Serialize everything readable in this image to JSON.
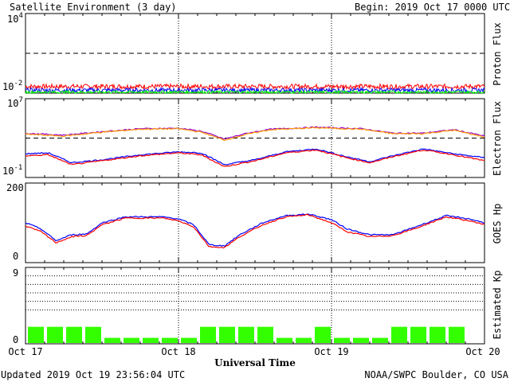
{
  "header": {
    "title": "Satellite Environment (3 day)",
    "begin": "Begin:  2019 Oct 17 0000 UTC"
  },
  "footer": {
    "updated": "Updated 2019 Oct 19 23:56:04 UTC",
    "credit": "NOAA/SWPC Boulder, CO USA"
  },
  "colors": {
    "red": "#ff0000",
    "blue": "#0000ff",
    "green": "#00ff00",
    "orange": "#ff9900",
    "kp_bar": "#33ff00"
  },
  "chart_data": [
    {
      "type": "line",
      "ylabel": "Proton Flux",
      "yscale": "log",
      "ytick_labels": [
        {
          "base": "10",
          "exp": "4"
        },
        {
          "base": "10",
          "exp": "-2"
        }
      ],
      "ylim": [
        -2,
        4
      ],
      "threshold_line": 1,
      "x_range_days": [
        0,
        3
      ],
      "series": [
        {
          "color": "red",
          "log_value": -1.5,
          "noise": 0.18
        },
        {
          "color": "blue",
          "log_value": -1.78,
          "noise": 0.16
        },
        {
          "color": "green",
          "log_value": -1.92,
          "noise": 0.1
        }
      ]
    },
    {
      "type": "line",
      "ylabel": "Electron Flux",
      "yscale": "log",
      "ytick_labels": [
        {
          "base": "10",
          "exp": "7"
        },
        {
          "base": "10",
          "exp": "-1"
        }
      ],
      "ylim": [
        -1,
        7
      ],
      "threshold_line": 3,
      "x_range_days": [
        0,
        3
      ],
      "series": [
        {
          "color": "purple",
          "x": [
            0,
            0.25,
            0.5,
            0.75,
            1.0,
            1.15,
            1.3,
            1.45,
            1.6,
            1.9,
            2.2,
            2.4,
            2.6,
            2.8,
            3.0
          ],
          "log_value": [
            3.5,
            3.3,
            3.65,
            3.95,
            4.0,
            3.7,
            2.9,
            3.5,
            3.9,
            4.1,
            3.95,
            3.5,
            3.5,
            3.85,
            3.2
          ]
        },
        {
          "color": "orange",
          "x": [
            0,
            0.25,
            0.5,
            0.75,
            1.0,
            1.15,
            1.3,
            1.45,
            1.6,
            1.9,
            2.2,
            2.4,
            2.6,
            2.8,
            3.0
          ],
          "log_value": [
            3.4,
            3.2,
            3.6,
            3.9,
            3.95,
            3.6,
            2.8,
            3.4,
            3.85,
            4.05,
            3.9,
            3.45,
            3.45,
            3.8,
            3.1
          ]
        },
        {
          "color": "blue",
          "x": [
            0,
            0.15,
            0.3,
            0.5,
            0.75,
            1.0,
            1.15,
            1.3,
            1.5,
            1.7,
            1.9,
            2.1,
            2.25,
            2.4,
            2.6,
            2.8,
            3.0
          ],
          "log_value": [
            1.4,
            1.5,
            0.5,
            0.8,
            1.3,
            1.6,
            1.5,
            0.3,
            0.8,
            1.6,
            1.9,
            1.1,
            0.6,
            1.2,
            1.9,
            1.4,
            1.0
          ]
        },
        {
          "color": "red",
          "x": [
            0,
            0.15,
            0.3,
            0.5,
            0.75,
            1.0,
            1.15,
            1.3,
            1.5,
            1.7,
            1.9,
            2.1,
            2.25,
            2.4,
            2.6,
            2.8,
            3.0
          ],
          "log_value": [
            1.2,
            1.3,
            0.3,
            0.7,
            1.2,
            1.5,
            1.3,
            0.1,
            0.7,
            1.5,
            1.8,
            1.0,
            0.5,
            1.1,
            1.8,
            1.3,
            0.7
          ]
        }
      ]
    },
    {
      "type": "line",
      "ylabel": "GOES Hp",
      "ytick_labels": [
        "200",
        "0"
      ],
      "ylim": [
        0,
        200
      ],
      "x_range_days": [
        0,
        3
      ],
      "series": [
        {
          "color": "blue",
          "x": [
            0,
            0.1,
            0.2,
            0.3,
            0.4,
            0.5,
            0.65,
            0.9,
            1.0,
            1.1,
            1.2,
            1.3,
            1.4,
            1.55,
            1.7,
            1.85,
            2.0,
            2.1,
            2.25,
            2.4,
            2.55,
            2.75,
            2.9,
            3.0
          ],
          "values": [
            100,
            85,
            55,
            70,
            72,
            100,
            115,
            115,
            110,
            95,
            45,
            42,
            70,
            100,
            118,
            122,
            108,
            85,
            70,
            70,
            90,
            118,
            110,
            100
          ]
        },
        {
          "color": "red",
          "x": [
            0,
            0.1,
            0.2,
            0.3,
            0.4,
            0.5,
            0.65,
            0.9,
            1.0,
            1.1,
            1.2,
            1.3,
            1.4,
            1.55,
            1.7,
            1.85,
            2.0,
            2.1,
            2.25,
            2.4,
            2.55,
            2.75,
            2.9,
            3.0
          ],
          "values": [
            92,
            78,
            50,
            65,
            68,
            95,
            112,
            112,
            105,
            90,
            40,
            38,
            65,
            95,
            115,
            120,
            100,
            78,
            65,
            68,
            86,
            115,
            105,
            96
          ]
        }
      ]
    },
    {
      "type": "bar",
      "ylabel": "Estimated Kp",
      "ytick_labels": [
        "9",
        "0"
      ],
      "ylim": [
        0,
        9
      ],
      "dotted_levels": [
        4,
        5,
        6,
        7,
        8,
        9
      ],
      "bar_width_hours": 3,
      "values": [
        2,
        2,
        2,
        2,
        0.7,
        0.7,
        0.7,
        0.7,
        0.7,
        2,
        2,
        2,
        2,
        0.7,
        0.7,
        2,
        0.7,
        0.7,
        0.7,
        2,
        2,
        2,
        2,
        0
      ]
    }
  ],
  "x_axis": {
    "tick_labels": [
      "Oct 17",
      "Oct 18",
      "Oct 19",
      "Oct 20"
    ],
    "label": "Universal Time"
  }
}
